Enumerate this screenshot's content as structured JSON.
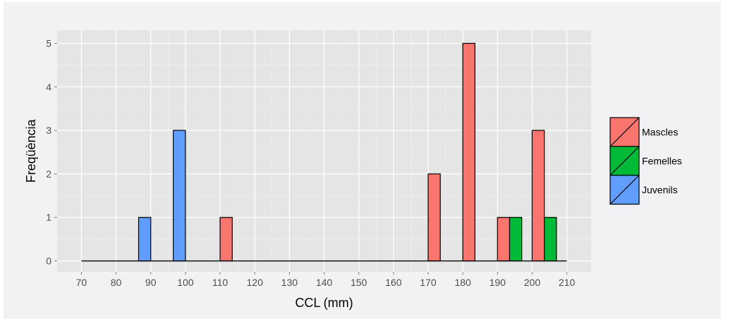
{
  "chart_data": {
    "type": "bar",
    "xlabel": "CCL (mm)",
    "ylabel": "Freqüència",
    "xlim": [
      63,
      217
    ],
    "ylim": [
      -0.25,
      5.3
    ],
    "x_ticks": [
      "70",
      "80",
      "90",
      "100",
      "110",
      "120",
      "130",
      "140",
      "150",
      "160",
      "170",
      "180",
      "190",
      "200",
      "210"
    ],
    "y_ticks": [
      "0",
      "1",
      "2",
      "3",
      "4",
      "5"
    ],
    "baseline": [
      70,
      210
    ],
    "series": [
      {
        "name": "Mascles",
        "color": "#f8766d",
        "bars": [
          {
            "x0": 110,
            "x1": 113.5,
            "y": 1
          },
          {
            "x0": 170,
            "x1": 173.5,
            "y": 2
          },
          {
            "x0": 180,
            "x1": 183.5,
            "y": 5
          },
          {
            "x0": 190,
            "x1": 193.5,
            "y": 1
          },
          {
            "x0": 200,
            "x1": 203.5,
            "y": 3
          }
        ]
      },
      {
        "name": "Femelles",
        "color": "#00ba38",
        "bars": [
          {
            "x0": 193.5,
            "x1": 197,
            "y": 1
          },
          {
            "x0": 203.5,
            "x1": 207,
            "y": 1
          }
        ]
      },
      {
        "name": "Juvenils",
        "color": "#619cff",
        "bars": [
          {
            "x0": 86.5,
            "x1": 90,
            "y": 1
          },
          {
            "x0": 96.5,
            "x1": 100,
            "y": 3
          }
        ]
      }
    ],
    "grid": true,
    "legend_position": "right"
  }
}
